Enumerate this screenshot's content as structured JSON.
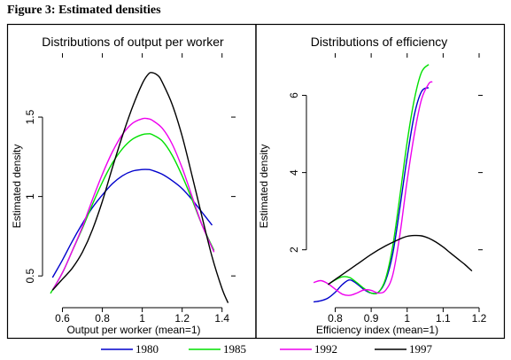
{
  "figure_title": "Figure 3: Estimated densities",
  "chart_data": [
    {
      "type": "line",
      "title": "Distributions of output per worker",
      "xlabel": "Output per worker (mean=1)",
      "ylabel": "Estimated density",
      "xlim": [
        0.5,
        1.45
      ],
      "ylim": [
        0.3,
        1.88
      ],
      "xticks": [
        0.6,
        0.8,
        1,
        1.2,
        1.4
      ],
      "xtick_labels": [
        "0.6",
        "0.8",
        "1",
        "1.2",
        "1.4"
      ],
      "yticks": [
        0.5,
        1,
        1.5
      ],
      "ytick_labels": [
        "0.5",
        "1",
        "1.5"
      ],
      "grid": false,
      "series": [
        {
          "name": "1980",
          "x": [
            0.55,
            0.6,
            0.65,
            0.7,
            0.75,
            0.8,
            0.85,
            0.9,
            0.95,
            1.0,
            1.03,
            1.05,
            1.1,
            1.15,
            1.2,
            1.25,
            1.3,
            1.35
          ],
          "values": [
            0.49,
            0.6,
            0.72,
            0.83,
            0.93,
            1.01,
            1.08,
            1.13,
            1.16,
            1.17,
            1.17,
            1.165,
            1.14,
            1.1,
            1.05,
            0.98,
            0.9,
            0.82
          ]
        },
        {
          "name": "1985",
          "x": [
            0.54,
            0.6,
            0.65,
            0.7,
            0.75,
            0.8,
            0.85,
            0.9,
            0.95,
            1.0,
            1.03,
            1.05,
            1.1,
            1.15,
            1.2,
            1.25,
            1.3,
            1.36
          ],
          "values": [
            0.39,
            0.52,
            0.66,
            0.8,
            0.95,
            1.09,
            1.21,
            1.3,
            1.36,
            1.39,
            1.395,
            1.39,
            1.35,
            1.26,
            1.13,
            0.98,
            0.82,
            0.66
          ]
        },
        {
          "name": "1992",
          "x": [
            0.55,
            0.6,
            0.65,
            0.7,
            0.75,
            0.8,
            0.85,
            0.9,
            0.95,
            1.0,
            1.03,
            1.05,
            1.1,
            1.15,
            1.2,
            1.25,
            1.3,
            1.36
          ],
          "values": [
            0.41,
            0.52,
            0.66,
            0.81,
            0.98,
            1.14,
            1.28,
            1.39,
            1.46,
            1.49,
            1.49,
            1.48,
            1.43,
            1.33,
            1.18,
            1.0,
            0.82,
            0.65
          ]
        },
        {
          "name": "1997",
          "x": [
            0.55,
            0.6,
            0.65,
            0.7,
            0.75,
            0.8,
            0.85,
            0.9,
            0.95,
            1.0,
            1.03,
            1.05,
            1.08,
            1.1,
            1.15,
            1.2,
            1.25,
            1.3,
            1.35,
            1.4,
            1.43
          ],
          "values": [
            0.41,
            0.48,
            0.55,
            0.65,
            0.79,
            0.97,
            1.18,
            1.38,
            1.56,
            1.71,
            1.77,
            1.78,
            1.76,
            1.72,
            1.58,
            1.38,
            1.13,
            0.87,
            0.62,
            0.42,
            0.33
          ]
        }
      ]
    },
    {
      "type": "line",
      "title": "Distributions of efficiency",
      "xlabel": "Efficiency index (mean=1)",
      "ylabel": "Estimated density",
      "xlim": [
        0.72,
        1.2
      ],
      "ylim": [
        0.5,
        7.0
      ],
      "xticks": [
        0.8,
        0.9,
        1,
        1.1,
        1.2
      ],
      "xtick_labels": [
        "0.8",
        "0.9",
        "1",
        "1.1",
        "1.2"
      ],
      "yticks": [
        2,
        4,
        6
      ],
      "ytick_labels": [
        "2",
        "4",
        "6"
      ],
      "grid": false,
      "series": [
        {
          "name": "1980",
          "x": [
            0.74,
            0.76,
            0.78,
            0.8,
            0.82,
            0.84,
            0.86,
            0.88,
            0.9,
            0.92,
            0.94,
            0.96,
            0.98,
            1.0,
            1.02,
            1.04,
            1.06
          ],
          "values": [
            0.65,
            0.68,
            0.75,
            0.9,
            1.1,
            1.22,
            1.12,
            0.97,
            0.88,
            0.9,
            1.2,
            1.9,
            3.1,
            4.4,
            5.5,
            6.1,
            6.2
          ]
        },
        {
          "name": "1985",
          "x": [
            0.78,
            0.8,
            0.82,
            0.84,
            0.86,
            0.88,
            0.9,
            0.92,
            0.94,
            0.96,
            0.98,
            1.0,
            1.02,
            1.04,
            1.06
          ],
          "values": [
            1.1,
            1.22,
            1.3,
            1.28,
            1.15,
            1.0,
            0.88,
            0.9,
            1.25,
            2.1,
            3.4,
            4.8,
            5.9,
            6.6,
            6.8
          ]
        },
        {
          "name": "1992",
          "x": [
            0.74,
            0.76,
            0.78,
            0.8,
            0.82,
            0.84,
            0.86,
            0.88,
            0.9,
            0.92,
            0.94,
            0.96,
            0.98,
            1.0,
            1.02,
            1.04,
            1.06,
            1.07
          ],
          "values": [
            1.15,
            1.2,
            1.12,
            0.98,
            0.85,
            0.82,
            0.88,
            0.96,
            0.95,
            0.88,
            0.95,
            1.35,
            2.4,
            3.8,
            5.0,
            5.9,
            6.3,
            6.35
          ]
        },
        {
          "name": "1997",
          "x": [
            0.78,
            0.82,
            0.86,
            0.9,
            0.94,
            0.98,
            1.0,
            1.02,
            1.04,
            1.06,
            1.08,
            1.1,
            1.12,
            1.14,
            1.16,
            1.18
          ],
          "values": [
            1.1,
            1.36,
            1.62,
            1.88,
            2.1,
            2.28,
            2.35,
            2.37,
            2.36,
            2.3,
            2.2,
            2.07,
            1.92,
            1.77,
            1.62,
            1.45
          ]
        }
      ]
    }
  ],
  "legend": [
    {
      "label": "1980",
      "color": "#0000cc"
    },
    {
      "label": "1985",
      "color": "#00e000"
    },
    {
      "label": "1992",
      "color": "#ee00ee"
    },
    {
      "label": "1997",
      "color": "#000000"
    }
  ],
  "colors": {
    "1980": "#0000cc",
    "1985": "#00e000",
    "1992": "#ee00ee",
    "1997": "#000000"
  }
}
